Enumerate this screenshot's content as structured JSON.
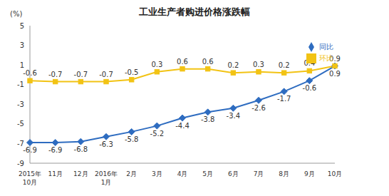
{
  "chart_data": {
    "type": "line",
    "title": "工业生产者购进价格涨跌幅",
    "ylabel": "(%)",
    "categories": [
      "2015年\n10月",
      "11月",
      "12月",
      "2016年\n1月",
      "2月",
      "3月",
      "4月",
      "5月",
      "6月",
      "7月",
      "8月",
      "9月",
      "10月"
    ],
    "series": [
      {
        "name": "同比",
        "color": "#2e6cc0",
        "marker": "diamond",
        "values": [
          -6.9,
          -6.9,
          -6.8,
          -6.3,
          -5.8,
          -5.2,
          -4.4,
          -3.8,
          -3.4,
          -2.6,
          -1.7,
          -0.6,
          0.9
        ]
      },
      {
        "name": "环比",
        "color": "#f2c314",
        "marker": "square",
        "values": [
          -0.6,
          -0.7,
          -0.7,
          -0.7,
          -0.5,
          0.3,
          0.6,
          0.6,
          0.2,
          0.3,
          0.2,
          0.4,
          0.9
        ]
      }
    ],
    "ylim": [
      -9,
      5
    ],
    "yticks": [
      -9,
      -7,
      -5,
      -3,
      -1,
      1,
      3,
      5
    ],
    "grid": false,
    "legend": "upper right",
    "data_labels": true
  }
}
